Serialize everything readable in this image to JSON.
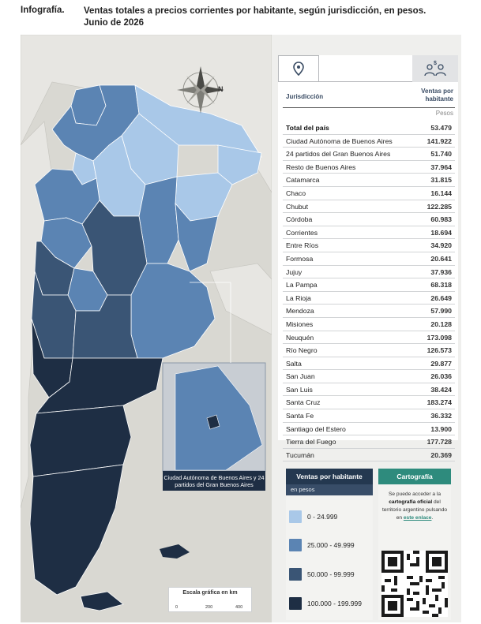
{
  "header": {
    "label": "Infografía.",
    "title": "Ventas totales a precios corrientes por habitante, según jurisdicción, en pesos.",
    "subtitle": "Junio de 2026"
  },
  "map": {
    "north_label": "N",
    "inset_caption": "Ciudad Autónoma de Buenos Aires y 24 partidos del Gran Buenos Aires",
    "scale_title": "Escala gráfica en km",
    "scale_ticks": [
      "0",
      "200",
      "400"
    ],
    "colors": {
      "class1": "#a9c8e8",
      "class2": "#5b84b3",
      "class3": "#3a5575",
      "class4": "#1e2e44",
      "land_other": "#e7e6e2",
      "sea": "#d9d8d2"
    }
  },
  "table": {
    "icons": [
      "map-pin-icon",
      "people-money-icon"
    ],
    "col_jurisdiction": "Jurisdicción",
    "col_value": "Ventas por habitante",
    "unit": "Pesos",
    "rows": [
      {
        "name": "Total del país",
        "value": "53.479",
        "total": true
      },
      {
        "name": "Ciudad Autónoma de Buenos Aires",
        "value": "141.922"
      },
      {
        "name": "24 partidos del Gran Buenos Aires",
        "value": "51.740"
      },
      {
        "name": "Resto de Buenos Aires",
        "value": "37.964"
      },
      {
        "name": "Catamarca",
        "value": "31.815"
      },
      {
        "name": "Chaco",
        "value": "16.144"
      },
      {
        "name": "Chubut",
        "value": "122.285"
      },
      {
        "name": "Córdoba",
        "value": "60.983"
      },
      {
        "name": "Corrientes",
        "value": "18.694"
      },
      {
        "name": "Entre Ríos",
        "value": "34.920"
      },
      {
        "name": "Formosa",
        "value": "20.641"
      },
      {
        "name": "Jujuy",
        "value": "37.936"
      },
      {
        "name": "La Pampa",
        "value": "68.318"
      },
      {
        "name": "La Rioja",
        "value": "26.649"
      },
      {
        "name": "Mendoza",
        "value": "57.990"
      },
      {
        "name": "Misiones",
        "value": "20.128"
      },
      {
        "name": "Neuquén",
        "value": "173.098"
      },
      {
        "name": "Río Negro",
        "value": "126.573"
      },
      {
        "name": "Salta",
        "value": "29.877"
      },
      {
        "name": "San Juan",
        "value": "26.036"
      },
      {
        "name": "San Luis",
        "value": "38.424"
      },
      {
        "name": "Santa Cruz",
        "value": "183.274"
      },
      {
        "name": "Santa Fe",
        "value": "36.332"
      },
      {
        "name": "Santiago del Estero",
        "value": "13.900"
      },
      {
        "name": "Tierra del Fuego",
        "value": "177.728"
      },
      {
        "name": "Tucumán",
        "value": "20.369"
      }
    ]
  },
  "legend": {
    "title": "Ventas por habitante",
    "unit": "en pesos",
    "classes": [
      {
        "label": "0 - 24.999",
        "color": "#a9c8e8"
      },
      {
        "label": "25.000 - 49.999",
        "color": "#5b84b3"
      },
      {
        "label": "50.000 - 99.999",
        "color": "#3a5575"
      },
      {
        "label": "100.000 - 199.999",
        "color": "#1e2e44"
      }
    ]
  },
  "cartography": {
    "title": "Cartografía",
    "text_1": "Se puede acceder a la",
    "text_bold": "cartografía oficial",
    "text_2": "del territorio argentino pulsando en",
    "link": "este enlace",
    "text_end": "."
  }
}
